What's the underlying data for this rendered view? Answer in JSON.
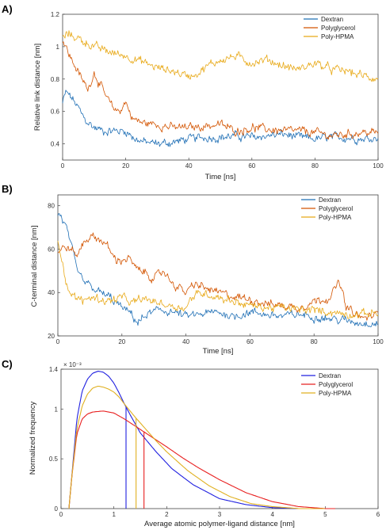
{
  "chart_data": [
    {
      "panel": "A)",
      "type": "line",
      "xlabel": "Time [ns]",
      "ylabel": "Relative link distance [nm]",
      "xlim": [
        0,
        100
      ],
      "ylim": [
        0.3,
        1.2
      ],
      "xticks": [
        "0",
        "20",
        "40",
        "60",
        "80",
        "100"
      ],
      "yticks": [
        "0.4",
        "0.6",
        "0.8",
        "1",
        "1.2"
      ],
      "legend_position": "top-right",
      "grid": false,
      "series": [
        {
          "name": "Dextran",
          "color": "#1f6fb5",
          "x": [
            0,
            1,
            3,
            5,
            7,
            10,
            13,
            16,
            20,
            23,
            26,
            30,
            35,
            40,
            45,
            50,
            55,
            60,
            65,
            70,
            75,
            80,
            85,
            90,
            95,
            100
          ],
          "y": [
            0.65,
            0.72,
            0.68,
            0.62,
            0.55,
            0.5,
            0.48,
            0.48,
            0.48,
            0.43,
            0.41,
            0.4,
            0.41,
            0.43,
            0.44,
            0.44,
            0.45,
            0.44,
            0.45,
            0.46,
            0.44,
            0.43,
            0.44,
            0.44,
            0.43,
            0.44
          ]
        },
        {
          "name": "Polyglycerol",
          "color": "#d35400",
          "x": [
            0,
            2,
            4,
            6,
            8,
            10,
            12,
            14,
            16,
            18,
            20,
            22,
            25,
            30,
            35,
            40,
            45,
            50,
            55,
            60,
            65,
            70,
            75,
            80,
            85,
            90,
            95,
            100
          ],
          "y": [
            1.05,
            0.95,
            0.88,
            0.8,
            0.74,
            0.84,
            0.76,
            0.68,
            0.62,
            0.6,
            0.66,
            0.56,
            0.53,
            0.52,
            0.5,
            0.5,
            0.51,
            0.52,
            0.48,
            0.5,
            0.49,
            0.48,
            0.48,
            0.47,
            0.45,
            0.46,
            0.47,
            0.47
          ]
        },
        {
          "name": "Poly-HPMA",
          "color": "#e8a917",
          "x": [
            0,
            2,
            5,
            8,
            10,
            13,
            16,
            19,
            22,
            26,
            30,
            35,
            38,
            40,
            43,
            46,
            50,
            55,
            60,
            65,
            70,
            75,
            80,
            85,
            90,
            95,
            100
          ],
          "y": [
            1.05,
            1.08,
            1.05,
            1.02,
            1.0,
            0.98,
            0.96,
            0.95,
            0.93,
            0.9,
            0.87,
            0.85,
            0.83,
            0.82,
            0.84,
            0.88,
            0.92,
            0.94,
            0.9,
            0.92,
            0.88,
            0.86,
            0.9,
            0.86,
            0.85,
            0.82,
            0.8
          ]
        }
      ]
    },
    {
      "panel": "B)",
      "type": "line",
      "xlabel": "Time [ns]",
      "ylabel": "C-terminal distance [nm]",
      "xlim": [
        0,
        100
      ],
      "ylim": [
        20,
        85
      ],
      "xticks": [
        "0",
        "20",
        "40",
        "60",
        "80",
        "100"
      ],
      "yticks": [
        "20",
        "40",
        "60",
        "80"
      ],
      "legend_position": "top-right",
      "grid": false,
      "series": [
        {
          "name": "Dextran",
          "color": "#1f6fb5",
          "x": [
            0,
            1,
            2,
            3,
            4,
            6,
            8,
            10,
            13,
            16,
            20,
            23,
            25,
            28,
            32,
            36,
            40,
            45,
            50,
            55,
            60,
            65,
            70,
            75,
            80,
            85,
            90,
            95,
            100
          ],
          "y": [
            76,
            75,
            72,
            68,
            62,
            50,
            45,
            43,
            40,
            38,
            33,
            30,
            26,
            30,
            32,
            31,
            29,
            30,
            31,
            29,
            31,
            30,
            29,
            30,
            29,
            28,
            27,
            26,
            26
          ]
        },
        {
          "name": "Polyglycerol",
          "color": "#d35400",
          "x": [
            0,
            2,
            4,
            6,
            8,
            10,
            12,
            14,
            16,
            18,
            20,
            22,
            25,
            28,
            30,
            33,
            36,
            40,
            43,
            46,
            50,
            55,
            60,
            65,
            70,
            75,
            80,
            85,
            88,
            90,
            95,
            100
          ],
          "y": [
            58,
            61,
            60,
            57,
            63,
            66,
            65,
            64,
            60,
            55,
            55,
            56,
            50,
            49,
            46,
            50,
            44,
            40,
            44,
            42,
            40,
            38,
            37,
            35,
            34,
            33,
            36,
            38,
            45,
            33,
            28,
            30
          ]
        },
        {
          "name": "Poly-HPMA",
          "color": "#e8a917",
          "x": [
            0,
            1,
            3,
            5,
            8,
            10,
            13,
            16,
            20,
            23,
            26,
            30,
            35,
            40,
            42,
            45,
            50,
            55,
            60,
            65,
            70,
            75,
            80,
            85,
            90,
            95,
            100
          ],
          "y": [
            65,
            58,
            42,
            38,
            36,
            38,
            37,
            36,
            38,
            35,
            37,
            36,
            34,
            33,
            38,
            40,
            38,
            36,
            34,
            33,
            33,
            32,
            32,
            31,
            30,
            30,
            31
          ]
        }
      ]
    },
    {
      "panel": "C)",
      "type": "line",
      "xlabel": "Average atomic polymer-ligand distance [nm]",
      "ylabel": "Normalized frequency",
      "exponent_label": "× 10⁻³",
      "xlim": [
        0,
        6
      ],
      "ylim": [
        0,
        0.0014
      ],
      "xticks": [
        "0",
        "1",
        "2",
        "3",
        "4",
        "5",
        "6"
      ],
      "yticks": [
        "0",
        "0.5",
        "1"
      ],
      "yticks_extra": [
        "1.4"
      ],
      "legend_position": "top-right",
      "grid": false,
      "series": [
        {
          "name": "Dextran",
          "color": "#2020e0",
          "x": [
            0.15,
            0.2,
            0.3,
            0.4,
            0.5,
            0.6,
            0.7,
            0.8,
            0.9,
            1.0,
            1.1,
            1.2,
            1.3,
            1.5,
            1.8,
            2.1,
            2.5,
            3.0,
            3.5,
            4.0,
            4.5,
            5.0
          ],
          "y": [
            0.0,
            0.0003,
            0.0009,
            0.00118,
            0.0013,
            0.00136,
            0.00138,
            0.00137,
            0.00133,
            0.00126,
            0.00116,
            0.00105,
            0.00095,
            0.00076,
            0.00057,
            0.0004,
            0.00024,
            0.0001,
            4e-05,
            1e-05,
            0.0,
            0.0
          ],
          "mean": 1.23
        },
        {
          "name": "Polyglycerol",
          "color": "#e82020",
          "x": [
            0.15,
            0.2,
            0.3,
            0.4,
            0.5,
            0.6,
            0.8,
            1.0,
            1.2,
            1.4,
            1.6,
            1.8,
            2.0,
            2.3,
            2.6,
            3.0,
            3.5,
            4.0,
            4.5,
            5.0,
            5.2
          ],
          "y": [
            0.0,
            0.0003,
            0.00075,
            0.0009,
            0.00095,
            0.00097,
            0.00098,
            0.00096,
            0.0009,
            0.00083,
            0.00076,
            0.00069,
            0.00062,
            0.00051,
            0.00041,
            0.00029,
            0.00016,
            7e-05,
            2e-05,
            0.0,
            0.0
          ],
          "mean": 1.57
        },
        {
          "name": "Poly-HPMA",
          "color": "#e0b020",
          "x": [
            0.15,
            0.2,
            0.3,
            0.4,
            0.5,
            0.6,
            0.7,
            0.8,
            0.9,
            1.0,
            1.1,
            1.2,
            1.4,
            1.6,
            1.8,
            2.0,
            2.4,
            2.8,
            3.2,
            3.6,
            4.0,
            4.5,
            5.0
          ],
          "y": [
            0.0,
            0.0003,
            0.0008,
            0.00103,
            0.00115,
            0.00121,
            0.00123,
            0.00122,
            0.0012,
            0.00117,
            0.00112,
            0.00105,
            0.00092,
            0.0008,
            0.00068,
            0.00057,
            0.00038,
            0.00023,
            0.00012,
            5e-05,
            2e-05,
            0.0,
            0.0
          ],
          "mean": 1.42
        }
      ]
    }
  ]
}
